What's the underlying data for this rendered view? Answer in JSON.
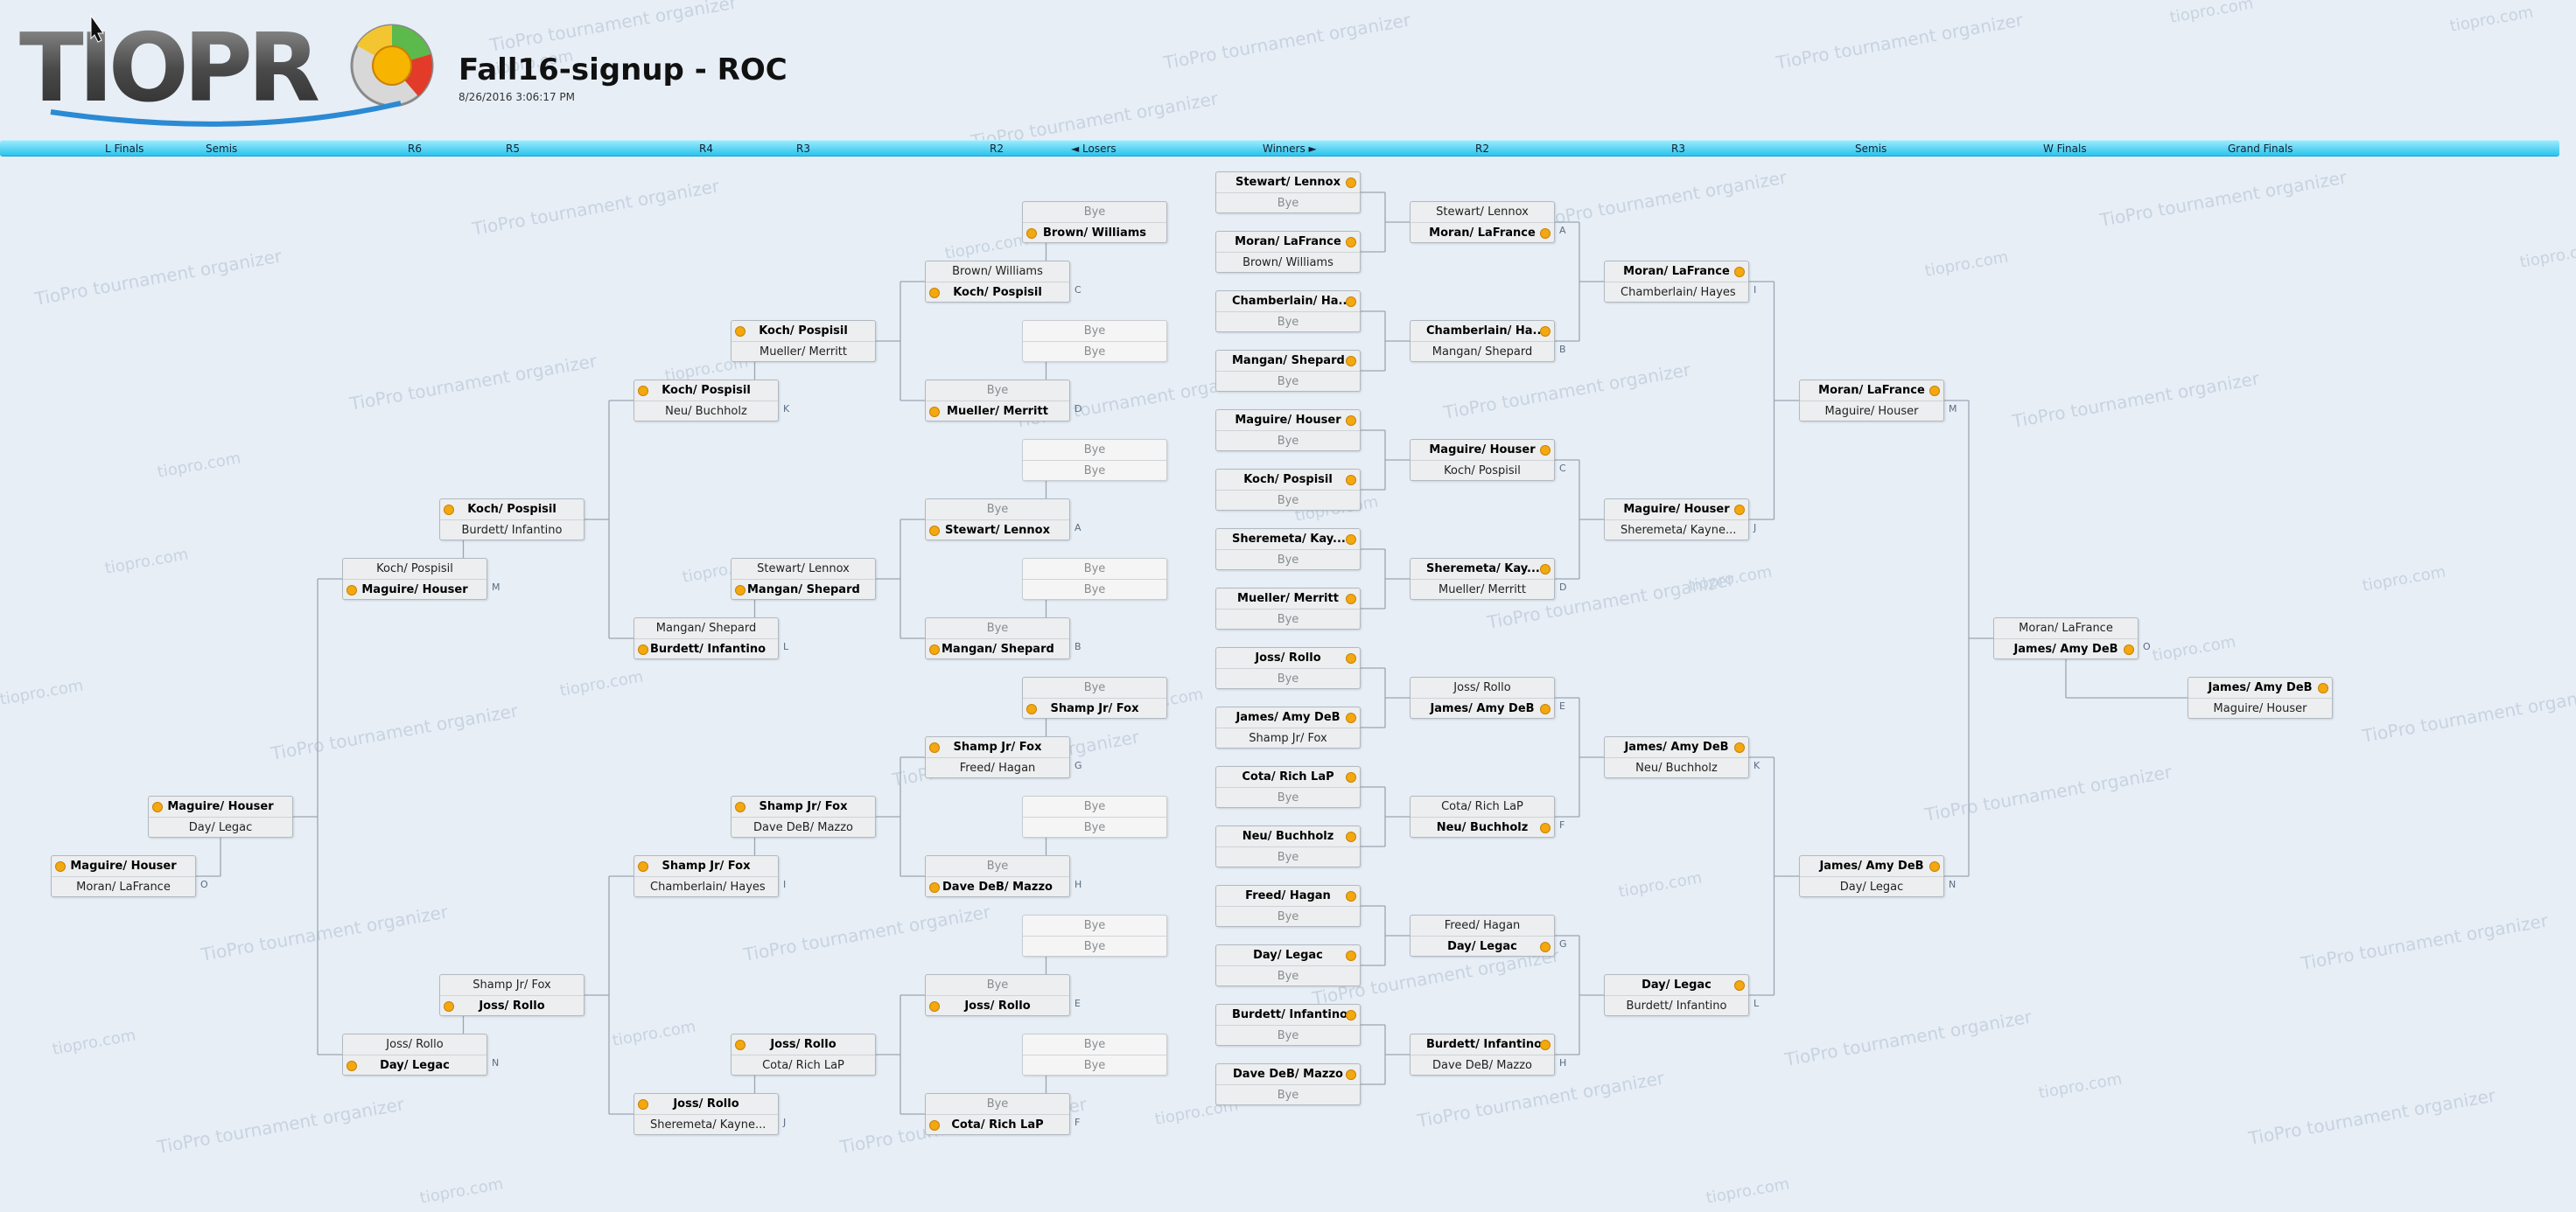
{
  "header": {
    "logo_text": "TIOPRO",
    "title": "Fall16-signup - ROC",
    "timestamp": "8/26/2016 3:06:17 PM"
  },
  "watermarks": [
    "TioPro tournament organizer",
    "tiopro.com"
  ],
  "nav": {
    "labels": [
      "L Finals",
      "Semis",
      "R6",
      "R5",
      "R4",
      "R3",
      "R2",
      "◄ Losers",
      "Winners ►",
      "R2",
      "R3",
      "Semis",
      "W Finals",
      "Grand Finals"
    ]
  },
  "colors": {
    "accent": "#29c4ee",
    "winner_dot": "#f4a80f",
    "background": "#e7eef6"
  },
  "bracket": {
    "winners": {
      "r1": [
        {
          "teams": [
            "Stewart/ Lennox",
            "Bye"
          ],
          "winner": 0
        },
        {
          "teams": [
            "Moran/ LaFrance",
            "Brown/ Williams"
          ],
          "winner": 0
        },
        {
          "teams": [
            "Chamberlain/ Ha...",
            "Bye"
          ],
          "winner": 0
        },
        {
          "teams": [
            "Mangan/ Shepard",
            "Bye"
          ],
          "winner": 0
        },
        {
          "teams": [
            "Maguire/ Houser",
            "Bye"
          ],
          "winner": 0
        },
        {
          "teams": [
            "Koch/ Pospisil",
            "Bye"
          ],
          "winner": 0
        },
        {
          "teams": [
            "Sheremeta/ Kay...",
            "Bye"
          ],
          "winner": 0
        },
        {
          "teams": [
            "Mueller/ Merritt",
            "Bye"
          ],
          "winner": 0
        },
        {
          "teams": [
            "Joss/ Rollo",
            "Bye"
          ],
          "winner": 0
        },
        {
          "teams": [
            "James/ Amy DeB",
            "Shamp Jr/ Fox"
          ],
          "winner": 0
        },
        {
          "teams": [
            "Cota/ Rich LaP",
            "Bye"
          ],
          "winner": 0
        },
        {
          "teams": [
            "Neu/ Buchholz",
            "Bye"
          ],
          "winner": 0
        },
        {
          "teams": [
            "Freed/ Hagan",
            "Bye"
          ],
          "winner": 0
        },
        {
          "teams": [
            "Day/ Legac",
            "Bye"
          ],
          "winner": 0
        },
        {
          "teams": [
            "Burdett/ Infantino",
            "Bye"
          ],
          "winner": 0
        },
        {
          "teams": [
            "Dave DeB/ Mazzo",
            "Bye"
          ],
          "winner": 0
        }
      ],
      "r2": [
        {
          "teams": [
            "Stewart/ Lennox",
            "Moran/ LaFrance"
          ],
          "winner": 1,
          "tag": "A"
        },
        {
          "teams": [
            "Chamberlain/ Ha...",
            "Mangan/ Shepard"
          ],
          "winner": 0,
          "tag": "B"
        },
        {
          "teams": [
            "Maguire/ Houser",
            "Koch/ Pospisil"
          ],
          "winner": 0,
          "tag": "C"
        },
        {
          "teams": [
            "Sheremeta/  Kay...",
            "Mueller/ Merritt"
          ],
          "winner": 0,
          "tag": "D"
        },
        {
          "teams": [
            "Joss/ Rollo",
            "James/ Amy DeB"
          ],
          "winner": 1,
          "tag": "E"
        },
        {
          "teams": [
            "Cota/ Rich LaP",
            "Neu/ Buchholz"
          ],
          "winner": 1,
          "tag": "F"
        },
        {
          "teams": [
            "Freed/ Hagan",
            "Day/ Legac"
          ],
          "winner": 1,
          "tag": "G"
        },
        {
          "teams": [
            "Burdett/ Infantino",
            "Dave DeB/ Mazzo"
          ],
          "winner": 0,
          "tag": "H"
        }
      ],
      "r3": [
        {
          "teams": [
            "Moran/ LaFrance",
            "Chamberlain/ Hayes"
          ],
          "winner": 0,
          "tag": "I"
        },
        {
          "teams": [
            "Maguire/ Houser",
            "Sheremeta/ Kayne..."
          ],
          "winner": 0,
          "tag": "J"
        },
        {
          "teams": [
            "James/ Amy DeB",
            "Neu/ Buchholz"
          ],
          "winner": 0,
          "tag": "K"
        },
        {
          "teams": [
            "Day/ Legac",
            "Burdett/ Infantino"
          ],
          "winner": 0,
          "tag": "L"
        }
      ],
      "semis": [
        {
          "teams": [
            "Moran/ LaFrance",
            "Maguire/ Houser"
          ],
          "winner": 0,
          "tag": "M"
        },
        {
          "teams": [
            "James/ Amy DeB",
            "Day/ Legac"
          ],
          "winner": 0,
          "tag": "N"
        }
      ],
      "finals": {
        "teams": [
          "Moran/ LaFrance",
          "James/ Amy DeB"
        ],
        "winner": 1,
        "tag": "O"
      },
      "grand_finals": {
        "teams": [
          "James/ Amy DeB",
          "Maguire/ Houser"
        ],
        "winner": 0
      }
    },
    "losers": {
      "r1": [
        {
          "teams": [
            "Bye",
            "Brown/ Williams"
          ],
          "winner": 1
        },
        {
          "teams": [
            "Bye",
            "Bye"
          ],
          "winner": -1
        },
        {
          "teams": [
            "Bye",
            "Bye"
          ],
          "winner": -1
        },
        {
          "teams": [
            "Bye",
            "Bye"
          ],
          "winner": -1
        },
        {
          "teams": [
            "Bye",
            "Shamp Jr/ Fox"
          ],
          "winner": 1
        },
        {
          "teams": [
            "Bye",
            "Bye"
          ],
          "winner": -1
        },
        {
          "teams": [
            "Bye",
            "Bye"
          ],
          "winner": -1
        },
        {
          "teams": [
            "Bye",
            "Bye"
          ],
          "winner": -1
        }
      ],
      "r2": [
        {
          "teams": [
            "Brown/ Williams",
            "Koch/ Pospisil"
          ],
          "winner": 1,
          "tag": "C"
        },
        {
          "teams": [
            "Bye",
            "Mueller/ Merritt"
          ],
          "winner": 1,
          "tag": "D"
        },
        {
          "teams": [
            "Bye",
            "Stewart/ Lennox"
          ],
          "winner": 1,
          "tag": "A"
        },
        {
          "teams": [
            "Bye",
            "Mangan/ Shepard"
          ],
          "winner": 1,
          "tag": "B"
        },
        {
          "teams": [
            "Shamp Jr/ Fox",
            "Freed/ Hagan"
          ],
          "winner": 0,
          "tag": "G"
        },
        {
          "teams": [
            "Bye",
            "Dave DeB/ Mazzo"
          ],
          "winner": 1,
          "tag": "H"
        },
        {
          "teams": [
            "Bye",
            "Joss/ Rollo"
          ],
          "winner": 1,
          "tag": "E"
        },
        {
          "teams": [
            "Bye",
            "Cota/ Rich LaP"
          ],
          "winner": 1,
          "tag": "F"
        }
      ],
      "r3": [
        {
          "teams": [
            "Koch/ Pospisil",
            "Mueller/ Merritt"
          ],
          "winner": 0
        },
        {
          "teams": [
            "Stewart/ Lennox",
            "Mangan/ Shepard"
          ],
          "winner": 1
        },
        {
          "teams": [
            "Shamp Jr/ Fox",
            "Dave DeB/ Mazzo"
          ],
          "winner": 0
        },
        {
          "teams": [
            "Joss/ Rollo",
            "Cota/ Rich LaP"
          ],
          "winner": 0
        }
      ],
      "r4": [
        {
          "teams": [
            "Koch/ Pospisil",
            "Neu/ Buchholz"
          ],
          "winner": 0,
          "tag": "K"
        },
        {
          "teams": [
            "Mangan/ Shepard",
            "Burdett/ Infantino"
          ],
          "winner": 1,
          "tag": "L"
        },
        {
          "teams": [
            "Shamp Jr/ Fox",
            "Chamberlain/ Hayes"
          ],
          "winner": 0,
          "tag": "I"
        },
        {
          "teams": [
            "Joss/ Rollo",
            "Sheremeta/ Kayne..."
          ],
          "winner": 0,
          "tag": "J"
        }
      ],
      "r5": [
        {
          "teams": [
            "Koch/ Pospisil",
            "Burdett/ Infantino"
          ],
          "winner": 0
        },
        {
          "teams": [
            "Shamp Jr/ Fox",
            "Joss/ Rollo"
          ],
          "winner": 1
        }
      ],
      "r6": [
        {
          "teams": [
            "Koch/ Pospisil",
            "Maguire/ Houser"
          ],
          "winner": 1,
          "tag": "M"
        },
        {
          "teams": [
            "Joss/ Rollo",
            "Day/ Legac"
          ],
          "winner": 1,
          "tag": "N"
        }
      ],
      "semis": {
        "teams": [
          "Maguire/ Houser",
          "Day/ Legac"
        ],
        "winner": 0
      },
      "finals": {
        "teams": [
          "Maguire/ Houser",
          "Moran/ LaFrance"
        ],
        "winner": 0,
        "tag": "O"
      }
    }
  }
}
